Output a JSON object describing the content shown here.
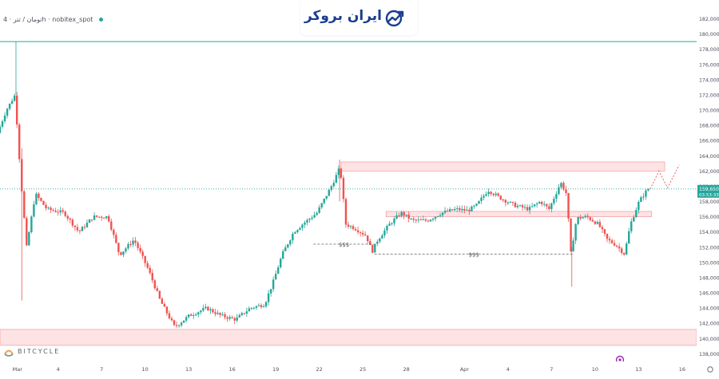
{
  "header": {
    "pair": "تومان / تتر",
    "timeframe": "4h",
    "exchange": "nobitex_spot"
  },
  "logo": {
    "text": "ایران بروکر"
  },
  "watermark": {
    "text": "BITCYCLE"
  },
  "colors": {
    "up": "#26a69a",
    "down": "#ef5350",
    "zone": "#fde3e4",
    "zone_border": "#f5a3a8",
    "top_line": "#26a69a",
    "price_line": "#26a69a"
  },
  "chart_data": {
    "type": "candlestick",
    "y_axis": {
      "ylim": [
        137200,
        183000
      ],
      "ticks": [
        138000,
        140000,
        142000,
        144000,
        146000,
        148000,
        150000,
        152000,
        154000,
        156000,
        158000,
        160000,
        162000,
        164000,
        166000,
        168000,
        170000,
        172000,
        174000,
        176000,
        178000,
        180000,
        182000
      ],
      "tick_labels": [
        "138,000.0",
        "140,000.0",
        "142,000.0",
        "144,000.0",
        "146,000.0",
        "148,000.0",
        "150,000.0",
        "152,000.0",
        "154,000.0",
        "156,000.0",
        "158,000.0",
        "160,000.0",
        "162,000.0",
        "164,000.0",
        "166,000.0",
        "168,000.0",
        "170,000.0",
        "172,000.0",
        "174,000.0",
        "176,000.0",
        "178,000.0",
        "180,000.0",
        "182,000.0"
      ]
    },
    "x_axis": {
      "xlim": [
        0,
        48
      ],
      "ticks": [
        {
          "d": 1.2,
          "label": "Mar"
        },
        {
          "d": 4,
          "label": "4"
        },
        {
          "d": 7,
          "label": "7"
        },
        {
          "d": 10,
          "label": "10"
        },
        {
          "d": 13,
          "label": "13"
        },
        {
          "d": 16,
          "label": "16"
        },
        {
          "d": 19,
          "label": "19"
        },
        {
          "d": 22,
          "label": "22"
        },
        {
          "d": 25,
          "label": "25"
        },
        {
          "d": 28,
          "label": "28"
        },
        {
          "d": 32,
          "label": "Apr"
        },
        {
          "d": 35,
          "label": "4"
        },
        {
          "d": 38,
          "label": "7"
        },
        {
          "d": 41,
          "label": "10"
        },
        {
          "d": 44,
          "label": "13"
        },
        {
          "d": 47,
          "label": "16"
        }
      ]
    },
    "price_label": {
      "value": "159,650.0",
      "countdown": "03:53:33",
      "price": 159650
    },
    "top_level": 179000,
    "zones": [
      {
        "x0": 23.5,
        "x1": 48,
        "y0": 139100,
        "y1": 141200,
        "note": ""
      },
      {
        "x0": 23.5,
        "x1": 48,
        "y0": 162000,
        "y1": 163200,
        "note": ""
      },
      {
        "x0": 26.6,
        "x1": 44.9,
        "y0": 156000,
        "y1": 156700,
        "note": ""
      }
    ],
    "liquidity_lines": [
      {
        "x0": 21.6,
        "x1": 25.8,
        "y": 152400,
        "label": "$$$"
      },
      {
        "x0": 25.8,
        "x1": 39.5,
        "y": 151100,
        "label": "$$$"
      }
    ],
    "projection": [
      [
        44.8,
        159650
      ],
      [
        45.4,
        162000
      ],
      [
        46.0,
        159800
      ],
      [
        46.8,
        162800
      ]
    ],
    "anchors": [
      [
        0,
        167000
      ],
      [
        0.6,
        170000
      ],
      [
        1.2,
        172000
      ],
      [
        1.6,
        161000
      ],
      [
        2.0,
        152000
      ],
      [
        2.6,
        159000
      ],
      [
        3.4,
        157000
      ],
      [
        4.6,
        156500
      ],
      [
        5.6,
        154000
      ],
      [
        6.6,
        156000
      ],
      [
        7.6,
        156000
      ],
      [
        8.4,
        151000
      ],
      [
        9.4,
        153000
      ],
      [
        10.4,
        149000
      ],
      [
        11.2,
        145000
      ],
      [
        12.2,
        141500
      ],
      [
        13.2,
        143000
      ],
      [
        14.4,
        144000
      ],
      [
        15.4,
        143000
      ],
      [
        16.4,
        142500
      ],
      [
        17.4,
        144000
      ],
      [
        18.4,
        144500
      ],
      [
        19.0,
        147500
      ],
      [
        19.6,
        151000
      ],
      [
        20.4,
        154000
      ],
      [
        21.0,
        155000
      ],
      [
        22.0,
        156500
      ],
      [
        23.0,
        160000
      ],
      [
        23.6,
        162500
      ],
      [
        24.0,
        155000
      ],
      [
        24.6,
        154500
      ],
      [
        25.4,
        153500
      ],
      [
        25.8,
        151400
      ],
      [
        26.2,
        153000
      ],
      [
        27.0,
        155000
      ],
      [
        27.8,
        156500
      ],
      [
        28.6,
        155500
      ],
      [
        29.6,
        155500
      ],
      [
        30.6,
        156500
      ],
      [
        31.6,
        157000
      ],
      [
        32.4,
        156800
      ],
      [
        33.0,
        157500
      ],
      [
        33.8,
        159500
      ],
      [
        34.6,
        158500
      ],
      [
        35.6,
        157500
      ],
      [
        36.6,
        157000
      ],
      [
        37.4,
        158000
      ],
      [
        38.0,
        157000
      ],
      [
        38.8,
        160500
      ],
      [
        39.2,
        159000
      ],
      [
        39.5,
        151200
      ],
      [
        39.9,
        155800
      ],
      [
        40.6,
        156000
      ],
      [
        41.4,
        155000
      ],
      [
        42.0,
        153000
      ],
      [
        42.6,
        152300
      ],
      [
        43.2,
        151100
      ],
      [
        43.6,
        155000
      ],
      [
        44.2,
        158000
      ],
      [
        44.8,
        159650
      ]
    ]
  }
}
